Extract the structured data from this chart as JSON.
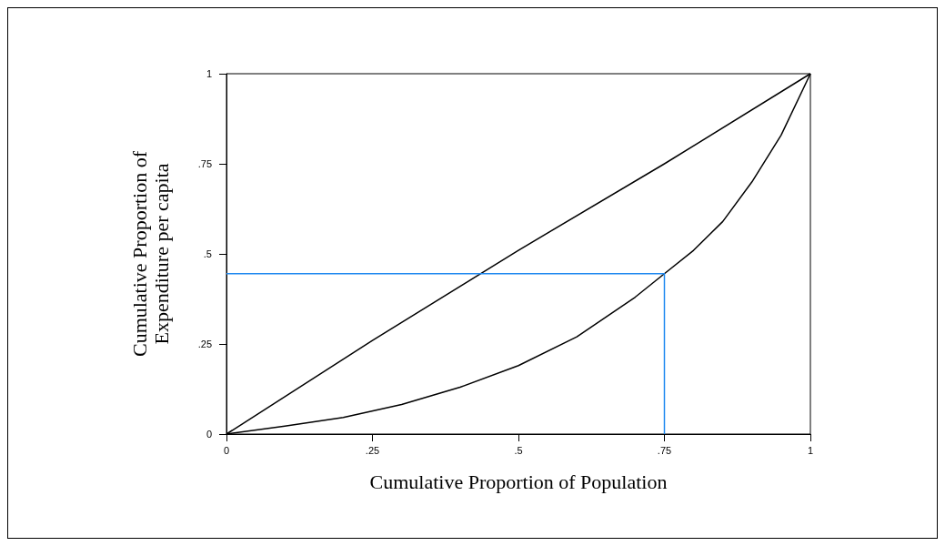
{
  "chart_data": {
    "type": "line",
    "xlabel": "Cumulative Proportion of Population",
    "ylabel": "Cumulative Proportion of\nExpenditure per capita",
    "xlim": [
      0,
      1
    ],
    "ylim": [
      0,
      1
    ],
    "xticks": [
      0,
      {
        "value": 0.25,
        "label": ".25"
      },
      {
        "value": 0.5,
        "label": ".5"
      },
      {
        "value": 0.75,
        "label": ".75"
      },
      1
    ],
    "yticks": [
      0,
      {
        "value": 0.25,
        "label": ".25"
      },
      {
        "value": 0.5,
        "label": ".5"
      },
      {
        "value": 0.75,
        "label": ".75"
      },
      1
    ],
    "grid": false,
    "marker": "none",
    "line_style": "solid",
    "series": [
      {
        "color": "#000000",
        "x": [
          0,
          0.25,
          0.5,
          0.75,
          1
        ],
        "values": [
          0,
          0.26,
          0.51,
          0.75,
          1
        ]
      },
      {
        "color": "#000000",
        "x": [
          0,
          0.1,
          0.2,
          0.3,
          0.4,
          0.5,
          0.6,
          0.7,
          0.75,
          0.8,
          0.85,
          0.9,
          0.95,
          1
        ],
        "values": [
          0,
          0.022,
          0.046,
          0.082,
          0.13,
          0.19,
          0.27,
          0.38,
          0.445,
          0.51,
          0.59,
          0.7,
          0.83,
          1
        ]
      },
      {
        "color": "#1e88f0",
        "x": [
          0,
          0.75,
          0.75
        ],
        "values": [
          0.445,
          0.445,
          0
        ]
      }
    ]
  }
}
